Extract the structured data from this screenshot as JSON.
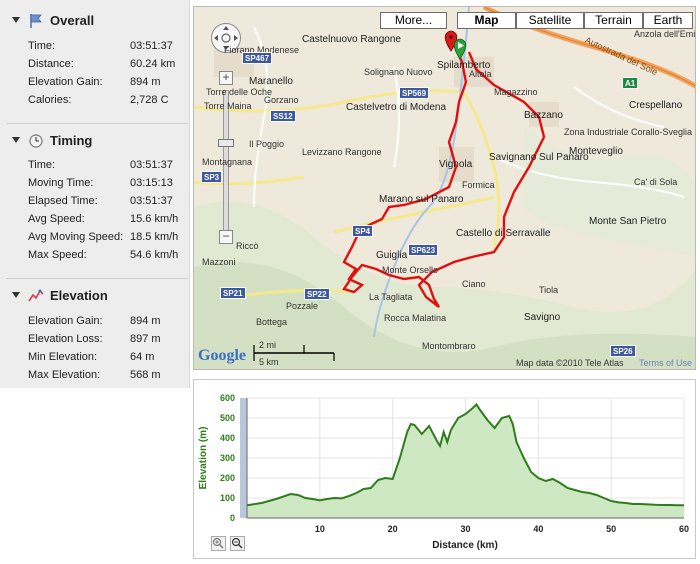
{
  "sections": [
    {
      "title": "Overall",
      "icon": "flag-icon",
      "rows": [
        {
          "label": "Time:",
          "value": "03:51:37"
        },
        {
          "label": "Distance:",
          "value": "60.24 km"
        },
        {
          "label": "Elevation Gain:",
          "value": "894 m"
        },
        {
          "label": "Calories:",
          "value": "2,728 C"
        }
      ]
    },
    {
      "title": "Timing",
      "icon": "clock-icon",
      "rows": [
        {
          "label": "Time:",
          "value": "03:51:37"
        },
        {
          "label": "Moving Time:",
          "value": "03:15:13"
        },
        {
          "label": "Elapsed Time:",
          "value": "03:51:37"
        },
        {
          "label": "Avg Speed:",
          "value": "15.6 km/h"
        },
        {
          "label": "Avg Moving Speed:",
          "value": "18.5 km/h"
        },
        {
          "label": "Max Speed:",
          "value": "54.6 km/h"
        }
      ]
    },
    {
      "title": "Elevation",
      "icon": "elevation-icon",
      "rows": [
        {
          "label": "Elevation Gain:",
          "value": "894 m"
        },
        {
          "label": "Elevation Loss:",
          "value": "897 m"
        },
        {
          "label": "Min Elevation:",
          "value": "64 m"
        },
        {
          "label": "Max Elevation:",
          "value": "568 m"
        }
      ]
    }
  ],
  "map": {
    "buttons": [
      "More...",
      "Map",
      "Satellite",
      "Terrain",
      "Earth"
    ],
    "active": "Map",
    "places": [
      "Fiorano Modenese",
      "Castelnuovo Rangone",
      "Maranello",
      "Torre delle Oche",
      "Gorzano",
      "Solignano Nuovo",
      "Castelvetro di Modena",
      "Spilamberto",
      "Magazzino",
      "Anzola dell'Emilia",
      "Crespellano",
      "Bazzano",
      "Zona Industriale Corallo-Sveglia",
      "Monteveglio",
      "Vignola",
      "Savignano Sul Panaro",
      "Formica",
      "Il Poggio",
      "Levizzano Rangone",
      "Marano sul Panaro",
      "Monte San Pietro",
      "Castello di Serravalle",
      "Guiglia",
      "Monte Orsello",
      "Ciano",
      "Tiola",
      "La Tagliata",
      "Rocca Malatina",
      "Savigno",
      "Bottega",
      "Pozzale",
      "Montombraro",
      "Riccò",
      "Montagnana",
      "Mazzoni",
      "Torre Maina",
      "Ca' di Sola",
      "Altola"
    ],
    "roads": [
      "SP467",
      "SS12",
      "SP569",
      "SP3",
      "SP4",
      "SP623",
      "SP21",
      "SP22",
      "SP26",
      "A1"
    ],
    "motorway_label": "Autostrada del Sole",
    "scale_mi": "2 mi",
    "scale_km": "5 km",
    "logo": "Google",
    "attribution": "Map data ©2010 Tele Atlas",
    "terms": "Terms of Use"
  },
  "chart_data": {
    "type": "area",
    "title": "",
    "xlabel": "Distance (km)",
    "ylabel": "Elevation (m)",
    "xlim": [
      0,
      60
    ],
    "ylim": [
      0,
      600
    ],
    "x_ticks": [
      10,
      20,
      30,
      40,
      50,
      60
    ],
    "y_ticks": [
      0,
      100,
      200,
      300,
      400,
      500,
      600
    ],
    "grid": true,
    "line_color": "#2e7d1a",
    "fill_color": "#cfe8c4",
    "series": [
      {
        "x": [
          0,
          2,
          4,
          6,
          7,
          8,
          9,
          10,
          11,
          12,
          13,
          14,
          15,
          16,
          17,
          18,
          19,
          20,
          21,
          22,
          22.5,
          23,
          24,
          25,
          26,
          26.5,
          27,
          27.5,
          28,
          29,
          30,
          31,
          31.5,
          32,
          33,
          34,
          35,
          36,
          36.5,
          37,
          38,
          39,
          40,
          41,
          42,
          43,
          44,
          45,
          46,
          47,
          48,
          49,
          50,
          51,
          52,
          53,
          54,
          55,
          56,
          57,
          58,
          59,
          60
        ],
        "y": [
          64,
          75,
          95,
          120,
          115,
          100,
          95,
          88,
          95,
          100,
          98,
          110,
          125,
          145,
          150,
          190,
          200,
          195,
          300,
          430,
          470,
          465,
          420,
          460,
          390,
          360,
          430,
          380,
          440,
          500,
          520,
          550,
          568,
          540,
          490,
          450,
          500,
          510,
          470,
          380,
          300,
          230,
          200,
          185,
          195,
          175,
          150,
          140,
          130,
          125,
          115,
          100,
          85,
          78,
          75,
          70,
          70,
          68,
          66,
          65,
          65,
          64,
          64
        ]
      }
    ]
  }
}
